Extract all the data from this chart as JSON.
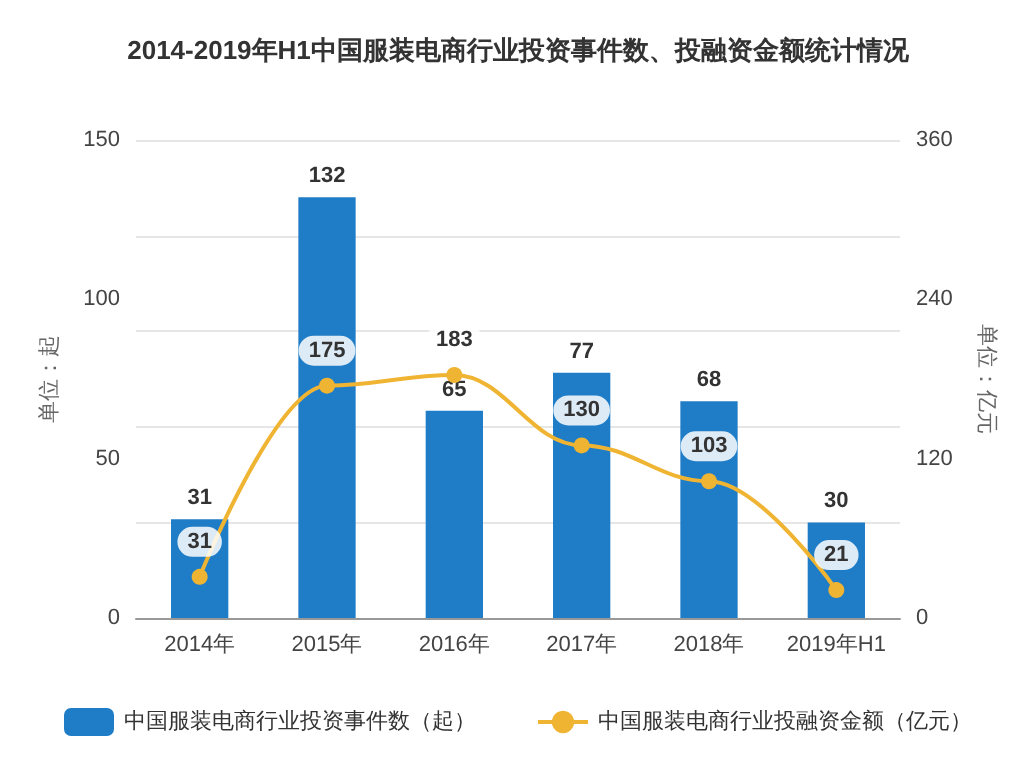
{
  "chart_data": {
    "type": "bar",
    "title": "2014-2019年H1中国服装电商行业投资事件数、投融资金额统计情况",
    "ylabel": "单位：起",
    "y2label": "单位：亿元",
    "categories": [
      "2014年",
      "2015年",
      "2016年",
      "2017年",
      "2018年",
      "2019年H1"
    ],
    "series": [
      {
        "name": "中国服装电商行业投资事件数（起）",
        "color": "#1f7cc6",
        "values": [
          31,
          132,
          65,
          77,
          68,
          30
        ]
      },
      {
        "name": "中国服装电商行业投融资金额（亿元）",
        "type": "line",
        "axis": "y2",
        "color": "#f0b433",
        "marker": "circle",
        "values": [
          31,
          175,
          183,
          130,
          103,
          21
        ]
      }
    ],
    "ylim": [
      0,
      150
    ],
    "yticks": [
      0,
      50,
      100,
      150
    ],
    "y2lim": [
      0,
      360
    ],
    "y2ticks": [
      0,
      120,
      240,
      360
    ],
    "grid": "y",
    "legend": "bottom",
    "data_labels": true
  }
}
